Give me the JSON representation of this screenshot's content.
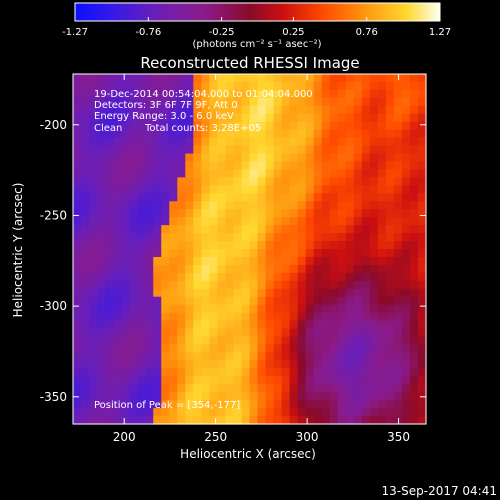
{
  "chart_data": {
    "type": "heatmap",
    "title": "Reconstructed RHESSI Image",
    "xlabel": "Heliocentric X (arcsec)",
    "ylabel": "Heliocentric Y (arcsec)",
    "xlim": [
      172,
      365
    ],
    "ylim": [
      -365,
      -172
    ],
    "xticks": [
      "200",
      "250",
      "300",
      "350"
    ],
    "xtick_values": [
      200,
      250,
      300,
      350
    ],
    "yticks": [
      "-200",
      "-250",
      "-300",
      "-350"
    ],
    "ytick_values": [
      -200,
      -250,
      -300,
      -350
    ],
    "colorbar": {
      "min": -1.27,
      "max": 1.27,
      "ticks": [
        "-1.27",
        "-0.76",
        "-0.25",
        "0.25",
        "0.76",
        "1.27"
      ],
      "tick_values": [
        -1.27,
        -0.76,
        -0.25,
        0.25,
        0.76,
        1.27
      ],
      "label": "(photons cm⁻² s⁻¹ asec⁻²)"
    },
    "annotations": {
      "time": "19-Dec-2014 00:54:04.000 to 01:04:04.000",
      "detectors": "Detectors: 3F 6F 7F 9F, Att 0",
      "energy": "Energy Range: 3.0 - 6.0 keV",
      "clean_label": "Clean",
      "total_counts": "Total counts: 3.28E+05",
      "peak": "Position of Peak = [354,-177]"
    },
    "grid": false
  },
  "footer": {
    "timestamp": "13-Sep-2017 04:41"
  }
}
